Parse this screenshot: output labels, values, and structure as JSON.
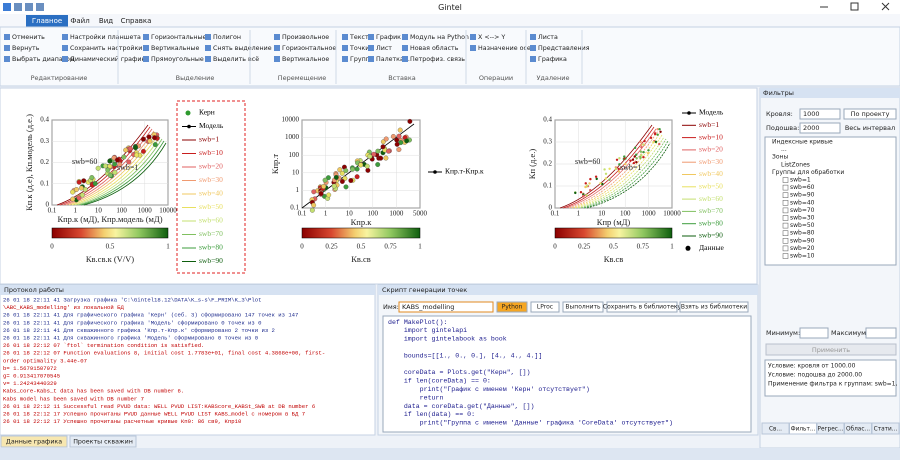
{
  "window": {
    "title": "Gintel"
  },
  "ribbon": {
    "tabs": [
      "Главное",
      "Файл",
      "Вид",
      "Справка"
    ],
    "groups": [
      {
        "label": "Редактирование",
        "items": [
          "Отменить",
          "Вернуть",
          "Выбрать диапазон",
          "Настройки планшета",
          "Сохранить настройки",
          "Динамический график"
        ]
      },
      {
        "label": "Выделение",
        "items": [
          "Горизонтальные",
          "Вертикальные",
          "Прямоугольные",
          "Полигон",
          "Снять выделение",
          "Выделить всё"
        ]
      },
      {
        "label": "Перемещение",
        "items": [
          "Произвольное",
          "Горизонтальное",
          "Вертикальное"
        ]
      },
      {
        "label": "Вставка",
        "items": [
          "Текст",
          "Точки",
          "Группа",
          "График",
          "Лист",
          "Палетка...",
          "Модуль на Python",
          "Новая область",
          "Петрофиз. связь"
        ]
      },
      {
        "label": "Операции",
        "items": [
          "X <--> Y",
          "Назначение осей"
        ]
      },
      {
        "label": "Удаление",
        "items": [
          "Листа",
          "Представления",
          "Графика"
        ]
      }
    ]
  },
  "charts": [
    {
      "ylabel": "Кп.к (д.е), Кп.модель (д.е.)",
      "xlabel": "Кпр.к (мД), Кпр.модель (мД)",
      "yticks": [
        "0.4",
        "0.3",
        "0.2",
        "0.1",
        "0"
      ],
      "xticks": [
        "0.1",
        "1",
        "10",
        "100",
        "1000",
        "10000"
      ],
      "annotations": [
        "swb=60",
        "swb=1"
      ],
      "colorbar_label": "Кв.св.к (V/V)",
      "colorbar_ticks": [
        "0",
        "0.5",
        "1"
      ],
      "legend": [
        {
          "label": "Керн",
          "style": "point",
          "color": "#2e9a2e"
        },
        {
          "label": "Модель",
          "style": "linepoint",
          "color": "#000000"
        },
        {
          "label": "swb=1",
          "style": "line",
          "color": "#8b0000"
        },
        {
          "label": "swb=10",
          "style": "line",
          "color": "#c81e1e"
        },
        {
          "label": "swb=20",
          "style": "line",
          "color": "#e06060"
        },
        {
          "label": "swb=30",
          "style": "line",
          "color": "#f09a70"
        },
        {
          "label": "swb=40",
          "style": "line",
          "color": "#f0c860"
        },
        {
          "label": "swb=50",
          "style": "line",
          "color": "#e8e060"
        },
        {
          "label": "swb=60",
          "style": "line",
          "color": "#c4e070"
        },
        {
          "label": "swb=70",
          "style": "line",
          "color": "#80c060"
        },
        {
          "label": "swb=80",
          "style": "line",
          "color": "#3c9c3c"
        },
        {
          "label": "swb=90",
          "style": "line",
          "color": "#0e5e0e"
        }
      ]
    },
    {
      "ylabel": "Кпр.т",
      "xlabel": "Кпр.к",
      "yticks": [
        "10000",
        "1000",
        "100",
        "10",
        "1",
        "0.1"
      ],
      "xticks": [
        "0.1",
        "1",
        "10",
        "100",
        "1000",
        "5000"
      ],
      "annotations": [],
      "colorbar_label": "Кв.св",
      "colorbar_ticks": [
        "0",
        "0.25",
        "0.5",
        "0.75",
        "1"
      ],
      "legend": [
        {
          "label": "Кпр.т-Кпр.к",
          "style": "linepoint",
          "color": "#000000"
        }
      ]
    },
    {
      "ylabel": "Кп (д.е.)",
      "xlabel": "Кпр (мД)",
      "yticks": [
        "0.4",
        "0.3",
        "0.2",
        "0.1",
        "0"
      ],
      "xticks": [
        "0.1",
        "1",
        "10",
        "100",
        "1000",
        "10000"
      ],
      "annotations": [
        "swb=60",
        "swb=1"
      ],
      "colorbar_label": "Кв.св",
      "colorbar_ticks": [
        "0",
        "0.25",
        "0.5",
        "0.75",
        "1"
      ],
      "legend": [
        {
          "label": "Модель",
          "style": "linepoint",
          "color": "#000000"
        },
        {
          "label": "swb=1",
          "style": "line",
          "color": "#8b0000"
        },
        {
          "label": "swb=10",
          "style": "line",
          "color": "#c81e1e"
        },
        {
          "label": "swb=20",
          "style": "line",
          "color": "#e06060"
        },
        {
          "label": "swb=30",
          "style": "line",
          "color": "#f09a70"
        },
        {
          "label": "swb=40",
          "style": "line",
          "color": "#f0c860"
        },
        {
          "label": "swb=50",
          "style": "line",
          "color": "#e8e060"
        },
        {
          "label": "swb=60",
          "style": "line",
          "color": "#c4e070"
        },
        {
          "label": "swb=70",
          "style": "line",
          "color": "#80c060"
        },
        {
          "label": "swb=80",
          "style": "line",
          "color": "#3c9c3c"
        },
        {
          "label": "swb=90",
          "style": "line",
          "color": "#0e5e0e"
        },
        {
          "label": "Данные",
          "style": "point",
          "color": "#000000"
        }
      ]
    }
  ],
  "filters": {
    "title": "Фильтры",
    "top_label": "Кровля:",
    "top_value": "1000",
    "top_button": "По проекту",
    "bottom_label": "Подошва:",
    "bottom_value": "2000",
    "bottom_button": "Весь интервал",
    "tree": [
      "Индексные кривые",
      "...",
      "Зоны",
      "ListZones",
      "Группы для обработки",
      "swb=1",
      "swb=60",
      "swb=90",
      "swb=40",
      "swb=70",
      "swb=30",
      "swb=50",
      "swb=80",
      "swb=90",
      "swb=20",
      "swb=10"
    ],
    "min_label": "Минимум:",
    "max_label": "Максимум:",
    "apply": "Применить",
    "info": [
      "Условие:  кровля от 1000.00",
      "Условие: подошва до 2000.00",
      "Применение фильтра к группам: swb=1,"
    ],
    "tabs": [
      "Св...",
      "Фильт...",
      "Регрес...",
      "Облас...",
      "Стати..."
    ]
  },
  "log": {
    "title": "Протокол работы",
    "lines": [
      "26 01 18 22:11 41  Загрузка графика 'C:\\Gintel18.12\\DATA\\K_s-s\\F_PRIM\\K_3\\Plot",
      "\\ABC_KABS_modelling' из локальной БД",
      "26 01 18 22:11 41  Для графического графика 'Керн' (себ. 3) сформировано 147 точек из 147",
      "26 01 18 22:11 41  Для графического графика 'Модель' сформировано 0 точек из 0",
      "26 01 18 22:11 41  Для скважинного графика 'Кпр.т-Кпр.к' сформировано 2 точки из 2",
      "26 01 18 22:11 41  Для скважинного графика 'Модель' сформировано 0 точек из 0",
      "26 01 18 22:12 07  `ftol` termination condition is satisfied.",
      "26 01 18 22:12 07  Function evaluations 8, initial cost 1.7783e+01, final cost 4.3868e+00, first-",
      "order optimality 3.44e-07",
      "b= 1.56791507972",
      "g= 0.913417070545",
      "v= 1.24243440329",
      "Kabs_core-Kabs_t data has been saved with DB number 6.",
      "Kabs model has been saved with DB number 7",
      "26 01 18 22:12 11  Successful read PVUD data: WELL PVUD LIST:KABScore_KABSt_SWB at DB number 6",
      "26 01 18 22:12 17  Успешно прочитаны PVUD данные WELL PVUD LIST KABS_model с номером в БД 7",
      "26 01 18 22:12 17  Успешно прочитаны расчетные кривые Кп0: 86 св9, Кпр10"
    ]
  },
  "script": {
    "title": "Скрипт генерации точек",
    "name_label": "Имя:",
    "name": "KABS_modelling",
    "buttons": [
      "Python",
      "LProc",
      "Выполнить",
      "Сохранить в библиотеку",
      "Взять из библиотеки"
    ],
    "code": [
      "def MakePlot():",
      "    import gintelapi",
      "    import gintelabook as book",
      "    bounds=[[1., 0., 0.], [4., 4., 4.]]",
      "    coreData = Plots.get(\"Керн\", [])",
      "    if len(coreData) == 0:",
      "        print(\"График с именем 'Керн' отсутствует\")",
      "        return",
      "    data = coreData.get(\"Данные\", [])",
      "    if len(data) == 0:",
      "        print(\"Группа с именем 'Данные' графика 'CoreData' отсутствует\")"
    ]
  },
  "bottom_tabs": [
    "Данные графика",
    "Проекты скважин"
  ]
}
